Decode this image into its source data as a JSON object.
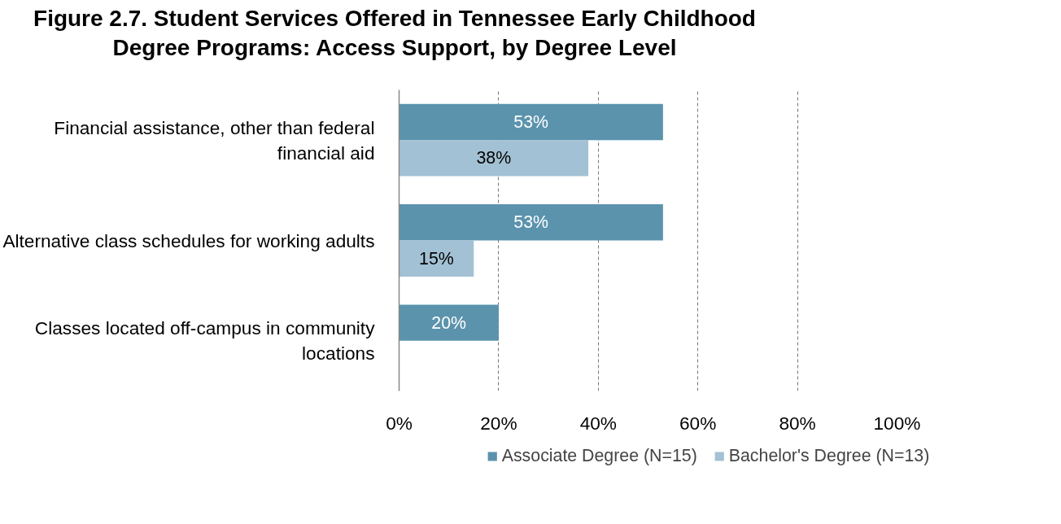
{
  "chart_data": {
    "type": "bar",
    "orientation": "horizontal",
    "title": "Figure 2.7. Student Services Offered in Tennessee Early Childhood Degree Programs: Access Support, by Degree Level",
    "categories": [
      "Financial assistance, other than federal financial aid",
      "Alternative class schedules for working adults",
      "Classes located off-campus in community locations"
    ],
    "series": [
      {
        "name": "Associate Degree (N=15)",
        "color": "#5b93ad",
        "values": [
          53,
          53,
          20
        ],
        "value_labels": [
          "53%",
          "53%",
          "20%"
        ]
      },
      {
        "name": "Bachelor's Degree (N=13)",
        "color": "#a3c1d4",
        "values": [
          38,
          15,
          null
        ],
        "value_labels": [
          "38%",
          "15%",
          null
        ]
      }
    ],
    "xlim": [
      0,
      100
    ],
    "xticks": [
      {
        "value": 0,
        "label": "0%"
      },
      {
        "value": 20,
        "label": "20%"
      },
      {
        "value": 40,
        "label": "40%"
      },
      {
        "value": 60,
        "label": "60%"
      },
      {
        "value": 80,
        "label": "80%"
      },
      {
        "value": 100,
        "label": "100%"
      }
    ],
    "grid": "x",
    "legend": "bottom"
  }
}
